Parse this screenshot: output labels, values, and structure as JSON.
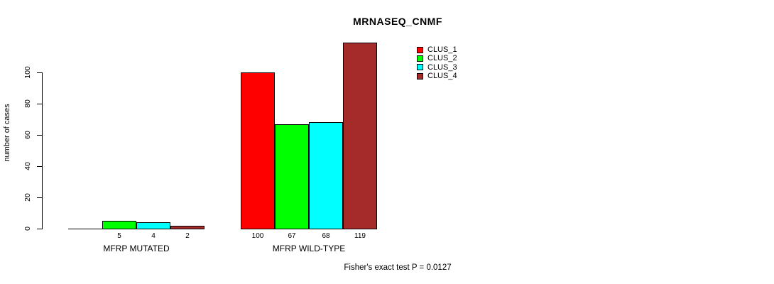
{
  "title": "MRNASEQ_CNMF",
  "chart_data": {
    "type": "bar",
    "title": "MRNASEQ_CNMF",
    "xlabel": "",
    "ylabel": "number of cases",
    "categories": [
      "MFRP MUTATED",
      "MFRP WILD-TYPE"
    ],
    "series": [
      {
        "name": "CLUS_1",
        "color": "#FF0000",
        "values": [
          0,
          100
        ],
        "labels": [
          "",
          "100"
        ]
      },
      {
        "name": "CLUS_2",
        "color": "#00FF00",
        "values": [
          5,
          67
        ],
        "labels": [
          "5",
          "67"
        ]
      },
      {
        "name": "CLUS_3",
        "color": "#00FFFF",
        "values": [
          4,
          68
        ],
        "labels": [
          "4",
          "68"
        ]
      },
      {
        "name": "CLUS_4",
        "color": "#A52A2A",
        "values": [
          2,
          119
        ],
        "labels": [
          "2",
          "119"
        ]
      }
    ],
    "yticks": [
      0,
      20,
      40,
      60,
      80,
      100
    ],
    "ylim": [
      0,
      100
    ],
    "grid": false,
    "legend_position": "top-right",
    "legend_entries": [
      "CLUS_1",
      "CLUS_2",
      "CLUS_3",
      "CLUS_4"
    ],
    "annotation": "Fisher's exact test P = 0.0127"
  }
}
